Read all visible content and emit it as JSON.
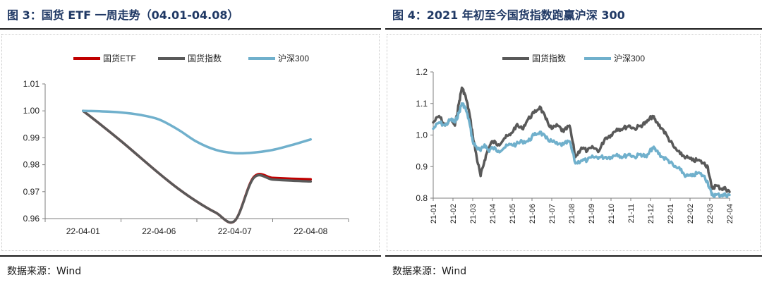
{
  "panels": [
    {
      "title": "图 3：国货 ETF 一周走势（04.01-04.08）",
      "source": "数据来源：Wind",
      "chart_data": {
        "type": "line",
        "title": "",
        "categories": [
          "22-04-01",
          "22-04-06",
          "22-04-07",
          "22-04-08"
        ],
        "ylim": [
          0.96,
          1.01
        ],
        "yticks": [
          0.96,
          0.97,
          0.98,
          0.99,
          1.0,
          1.01
        ],
        "ytick_labels": [
          "0.96",
          "0.97",
          "0.98",
          "0.99",
          "1.00",
          "1.01"
        ],
        "legend_position": "top",
        "series": [
          {
            "name": "国货ETF",
            "color": "#c00000",
            "points": [
              [
                0,
                1.0
              ],
              [
                0.25,
                0.9945
              ],
              [
                0.5,
                0.9888
              ],
              [
                0.75,
                0.9828
              ],
              [
                1.0,
                0.9768
              ],
              [
                1.25,
                0.9712
              ],
              [
                1.5,
                0.9663
              ],
              [
                1.75,
                0.9622
              ],
              [
                2.0,
                0.9592
              ],
              [
                2.25,
                0.9754
              ],
              [
                2.5,
                0.9751
              ],
              [
                2.75,
                0.9748
              ],
              [
                3.0,
                0.9746
              ]
            ]
          },
          {
            "name": "国货指数",
            "color": "#595959",
            "points": [
              [
                0,
                1.0
              ],
              [
                0.25,
                0.9945
              ],
              [
                0.5,
                0.9888
              ],
              [
                0.75,
                0.9828
              ],
              [
                1.0,
                0.9768
              ],
              [
                1.25,
                0.9712
              ],
              [
                1.5,
                0.9663
              ],
              [
                1.75,
                0.9622
              ],
              [
                2.0,
                0.9592
              ],
              [
                2.25,
                0.9751
              ],
              [
                2.5,
                0.9745
              ],
              [
                2.75,
                0.9741
              ],
              [
                3.0,
                0.9738
              ]
            ]
          },
          {
            "name": "沪深300",
            "color": "#70b0cc",
            "points": [
              [
                0,
                1.0
              ],
              [
                0.25,
                0.9998
              ],
              [
                0.5,
                0.9994
              ],
              [
                0.75,
                0.9985
              ],
              [
                1.0,
                0.9968
              ],
              [
                1.25,
                0.9931
              ],
              [
                1.5,
                0.9885
              ],
              [
                1.75,
                0.9855
              ],
              [
                2.0,
                0.9843
              ],
              [
                2.25,
                0.9845
              ],
              [
                2.5,
                0.9855
              ],
              [
                2.75,
                0.9873
              ],
              [
                3.0,
                0.9894
              ]
            ]
          }
        ]
      }
    },
    {
      "title": "图 4：2021 年初至今国货指数跑赢沪深 300",
      "source": "数据来源：Wind",
      "chart_data": {
        "type": "line",
        "title": "",
        "categories": [
          "21-01",
          "21-02",
          "21-03",
          "21-04",
          "21-05",
          "21-06",
          "21-07",
          "21-08",
          "21-09",
          "21-10",
          "21-11",
          "21-12",
          "22-01",
          "22-02",
          "22-03",
          "22-04"
        ],
        "ylim": [
          0.8,
          1.2
        ],
        "yticks": [
          0.8,
          0.9,
          1.0,
          1.1,
          1.2
        ],
        "ytick_labels": [
          "0.8",
          "0.9",
          "1.0",
          "1.1",
          "1.2"
        ],
        "legend_position": "top",
        "series": [
          {
            "name": "国货指数",
            "color": "#595959",
            "points": [
              [
                0,
                1.04
              ],
              [
                0.3,
                1.06
              ],
              [
                0.6,
                1.03
              ],
              [
                0.9,
                1.05
              ],
              [
                1.1,
                1.03
              ],
              [
                1.3,
                1.1
              ],
              [
                1.45,
                1.15
              ],
              [
                1.6,
                1.13
              ],
              [
                1.8,
                1.08
              ],
              [
                2.0,
                1.0
              ],
              [
                2.2,
                0.93
              ],
              [
                2.4,
                0.87
              ],
              [
                2.6,
                0.92
              ],
              [
                2.8,
                0.96
              ],
              [
                3.0,
                0.98
              ],
              [
                3.3,
                0.97
              ],
              [
                3.6,
                0.99
              ],
              [
                3.9,
                1.0
              ],
              [
                4.2,
                1.03
              ],
              [
                4.5,
                1.02
              ],
              [
                4.8,
                1.05
              ],
              [
                5.1,
                1.07
              ],
              [
                5.4,
                1.09
              ],
              [
                5.7,
                1.05
              ],
              [
                6.0,
                1.02
              ],
              [
                6.3,
                1.03
              ],
              [
                6.6,
                1.01
              ],
              [
                6.9,
                1.03
              ],
              [
                7.2,
                0.93
              ],
              [
                7.5,
                0.96
              ],
              [
                7.8,
                0.95
              ],
              [
                8.1,
                0.96
              ],
              [
                8.4,
                0.95
              ],
              [
                8.7,
                0.99
              ],
              [
                9.0,
                1.0
              ],
              [
                9.3,
                1.02
              ],
              [
                9.6,
                1.02
              ],
              [
                9.9,
                1.03
              ],
              [
                10.2,
                1.02
              ],
              [
                10.5,
                1.03
              ],
              [
                10.8,
                1.04
              ],
              [
                11.1,
                1.06
              ],
              [
                11.3,
                1.04
              ],
              [
                11.6,
                1.02
              ],
              [
                11.9,
                0.99
              ],
              [
                12.2,
                0.96
              ],
              [
                12.5,
                0.94
              ],
              [
                12.8,
                0.93
              ],
              [
                13.1,
                0.92
              ],
              [
                13.4,
                0.92
              ],
              [
                13.7,
                0.91
              ],
              [
                13.9,
                0.9
              ],
              [
                14.1,
                0.83
              ],
              [
                14.3,
                0.84
              ],
              [
                14.6,
                0.83
              ],
              [
                14.8,
                0.83
              ],
              [
                15.0,
                0.82
              ]
            ]
          },
          {
            "name": "沪深300",
            "color": "#70b0cc",
            "points": [
              [
                0,
                1.02
              ],
              [
                0.3,
                1.04
              ],
              [
                0.6,
                1.03
              ],
              [
                0.9,
                1.05
              ],
              [
                1.1,
                1.04
              ],
              [
                1.3,
                1.07
              ],
              [
                1.45,
                1.1
              ],
              [
                1.6,
                1.09
              ],
              [
                1.8,
                1.05
              ],
              [
                2.0,
                0.98
              ],
              [
                2.2,
                0.96
              ],
              [
                2.4,
                0.95
              ],
              [
                2.6,
                0.97
              ],
              [
                2.8,
                0.95
              ],
              [
                3.0,
                0.96
              ],
              [
                3.3,
                0.95
              ],
              [
                3.6,
                0.96
              ],
              [
                3.9,
                0.97
              ],
              [
                4.2,
                0.97
              ],
              [
                4.5,
                0.98
              ],
              [
                4.8,
                0.98
              ],
              [
                5.1,
                1.0
              ],
              [
                5.4,
                1.01
              ],
              [
                5.7,
                0.99
              ],
              [
                6.0,
                0.98
              ],
              [
                6.3,
                0.97
              ],
              [
                6.6,
                0.97
              ],
              [
                6.9,
                0.98
              ],
              [
                7.2,
                0.91
              ],
              [
                7.5,
                0.92
              ],
              [
                7.8,
                0.92
              ],
              [
                8.1,
                0.93
              ],
              [
                8.4,
                0.93
              ],
              [
                8.7,
                0.93
              ],
              [
                9.0,
                0.93
              ],
              [
                9.3,
                0.94
              ],
              [
                9.6,
                0.93
              ],
              [
                9.9,
                0.94
              ],
              [
                10.2,
                0.93
              ],
              [
                10.5,
                0.94
              ],
              [
                10.8,
                0.93
              ],
              [
                11.1,
                0.96
              ],
              [
                11.3,
                0.95
              ],
              [
                11.6,
                0.93
              ],
              [
                11.9,
                0.92
              ],
              [
                12.2,
                0.9
              ],
              [
                12.5,
                0.89
              ],
              [
                12.8,
                0.87
              ],
              [
                13.1,
                0.87
              ],
              [
                13.4,
                0.88
              ],
              [
                13.7,
                0.87
              ],
              [
                13.9,
                0.85
              ],
              [
                14.1,
                0.81
              ],
              [
                14.3,
                0.81
              ],
              [
                14.6,
                0.81
              ],
              [
                14.8,
                0.81
              ],
              [
                15.0,
                0.81
              ]
            ]
          }
        ]
      }
    }
  ]
}
